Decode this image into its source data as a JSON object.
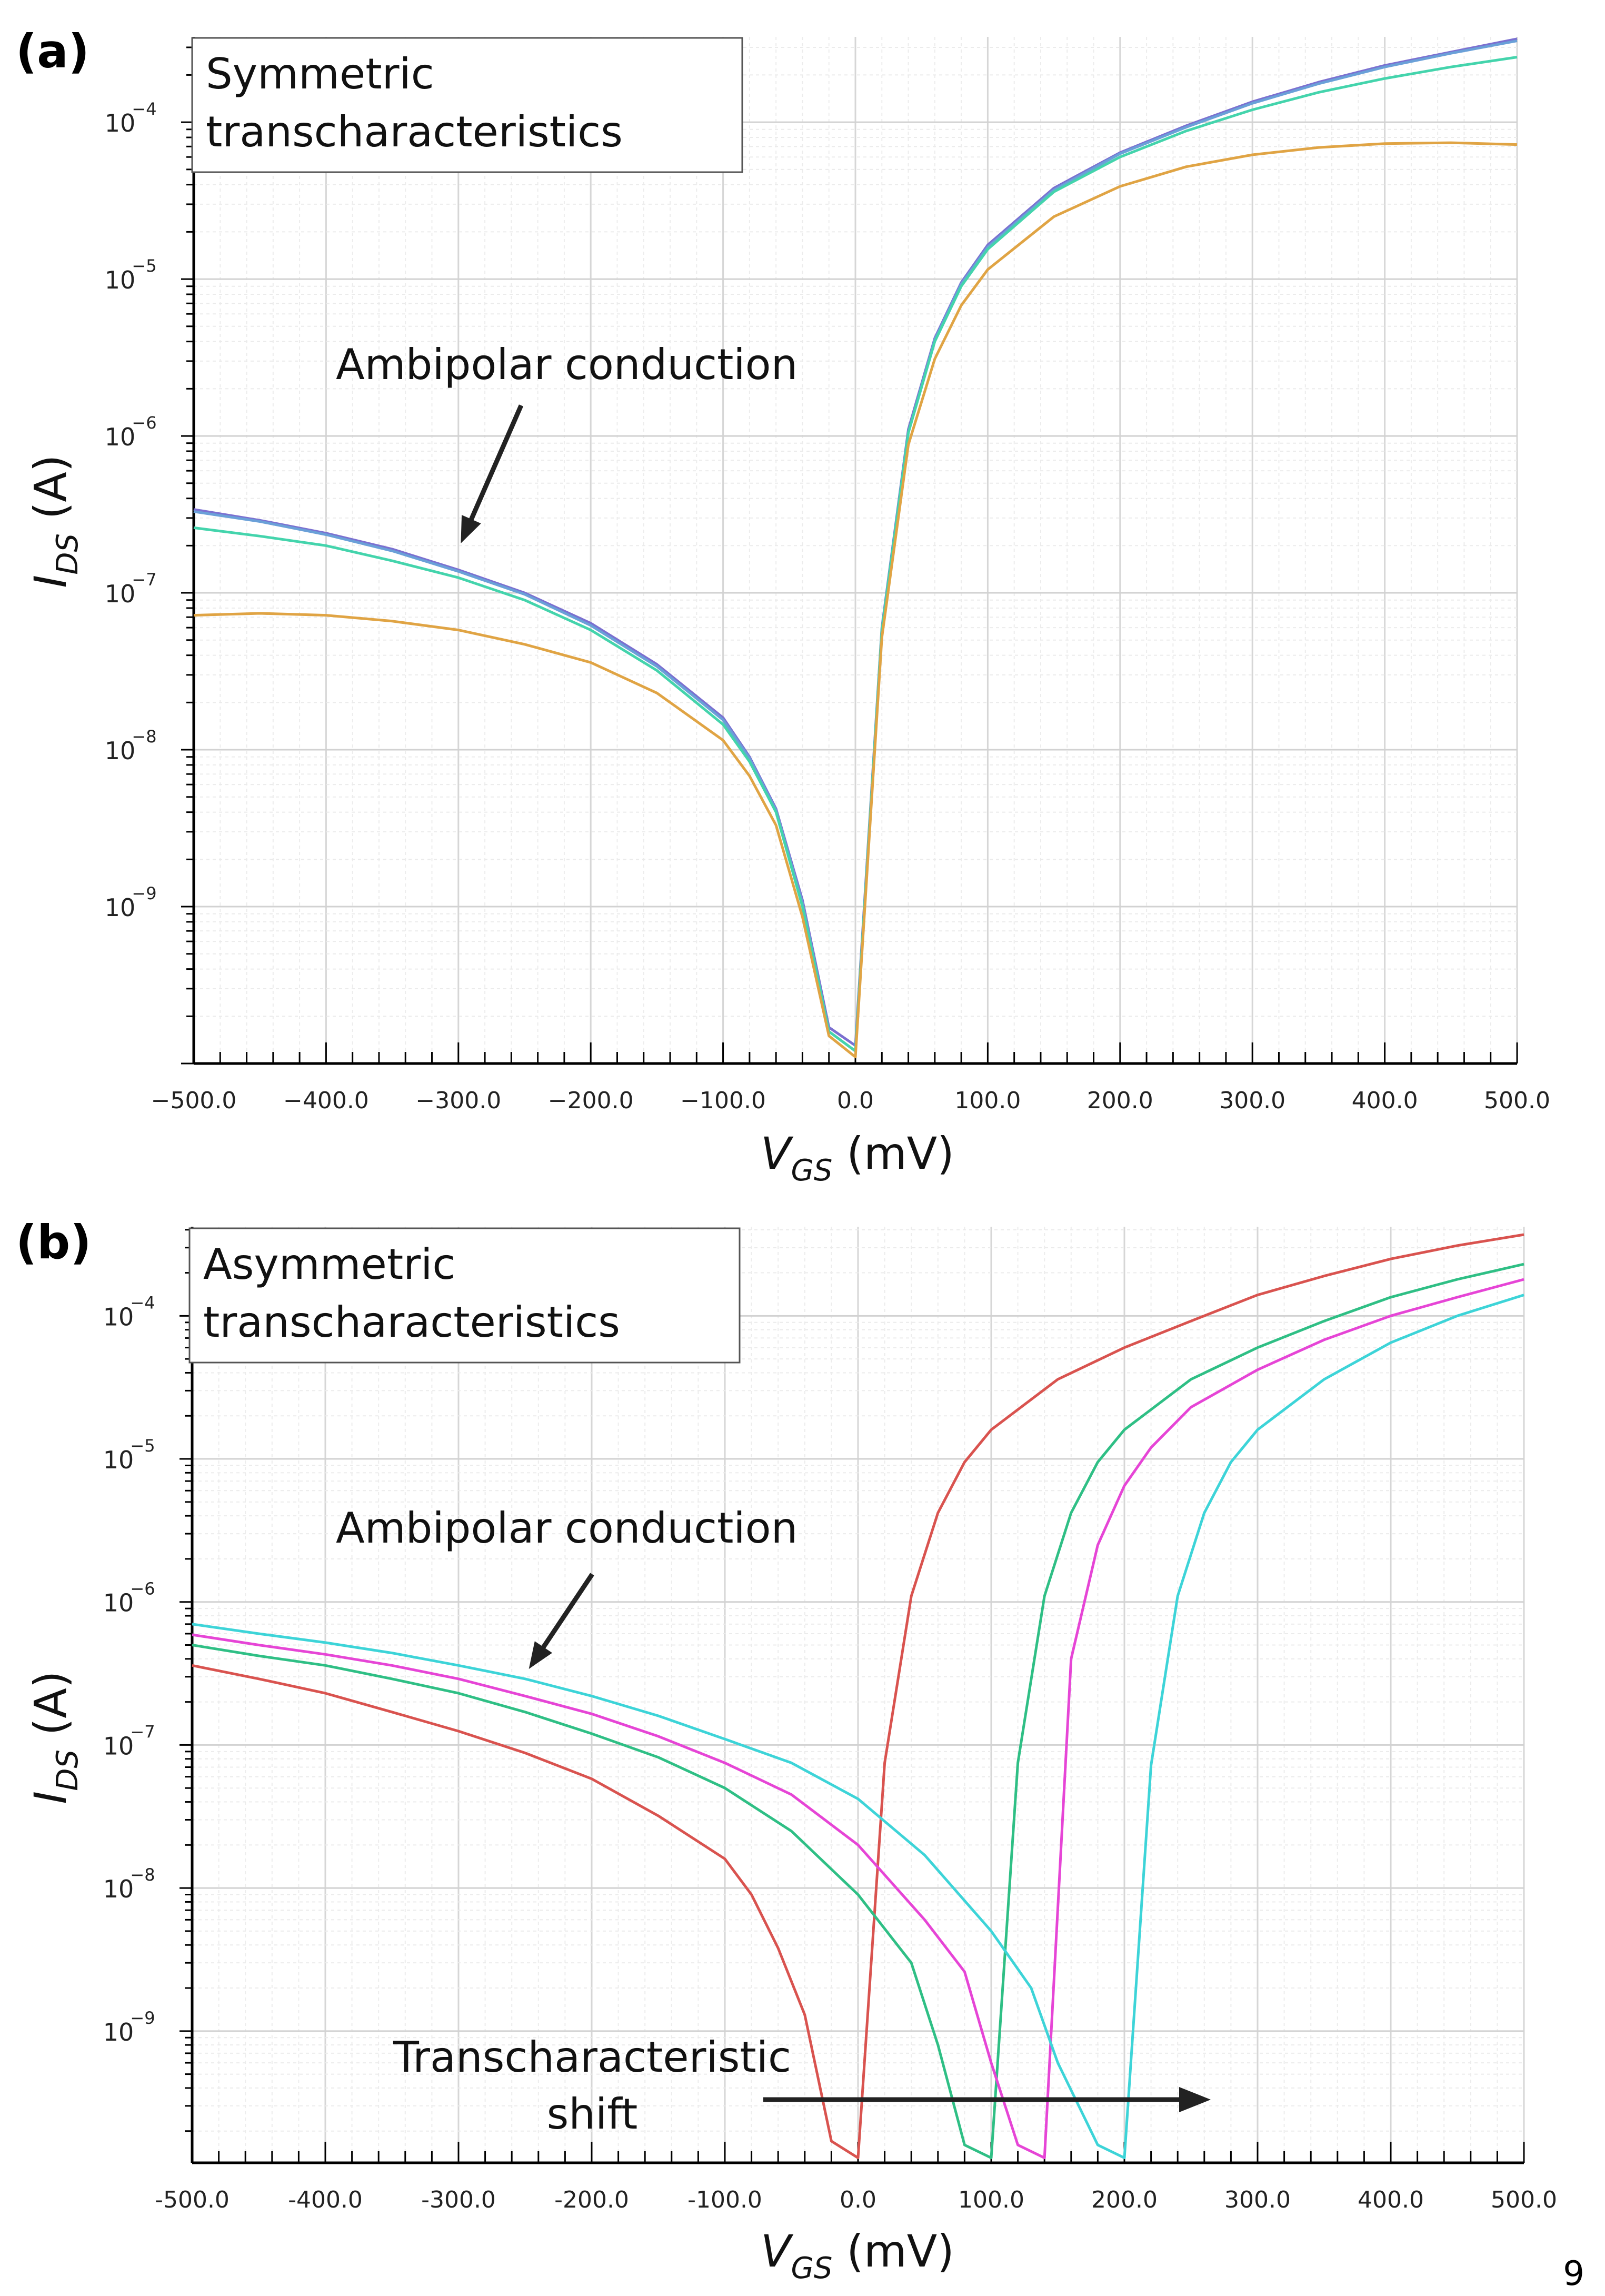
{
  "page_number": "9",
  "chart_data": [
    {
      "type": "line",
      "panel_label": "(a)",
      "title": "Symmetric transcharacteristics",
      "title_lines": [
        "Symmetric",
        "transcharacteristics"
      ],
      "annotation": "Ambipolar conduction",
      "xlabel_main": "V",
      "xlabel_sub": "GS",
      "xlabel_unit": "(mV)",
      "ylabel_main": "I",
      "ylabel_sub": "DS",
      "ylabel_unit": "(A)",
      "x_ticks": [
        "−500.0",
        "−400.0",
        "−300.0",
        "−200.0",
        "−100.0",
        "0.0",
        "100.0",
        "200.0",
        "300.0",
        "400.0",
        "500.0"
      ],
      "y_ticks": [
        "10",
        "10",
        "10",
        "10",
        "10",
        "10"
      ],
      "y_tick_exponents": [
        "−4",
        "−5",
        "−6",
        "−7",
        "−8",
        "−9"
      ],
      "xlim": [
        -500,
        500
      ],
      "ylim": [
        1e-10,
        0.00035
      ],
      "yscale": "log",
      "grid": true,
      "series": [
        {
          "color": "#7b6fd0",
          "x": [
            -500,
            -450,
            -400,
            -350,
            -300,
            -250,
            -200,
            -150,
            -100,
            -80,
            -60,
            -40,
            -20,
            0,
            20,
            40,
            60,
            80,
            100,
            150,
            200,
            250,
            300,
            350,
            400,
            450,
            500
          ],
          "y": [
            3.4e-07,
            2.9e-07,
            2.4e-07,
            1.9e-07,
            1.4e-07,
            1e-07,
            6.4e-08,
            3.5e-08,
            1.6e-08,
            9e-09,
            4.2e-09,
            1.1e-09,
            1.7e-10,
            1.3e-10,
            6e-08,
            1.1e-06,
            4.2e-06,
            9.5e-06,
            1.65e-05,
            3.8e-05,
            6.4e-05,
            9.5e-05,
            0.000135,
            0.00018,
            0.00023,
            0.00028,
            0.00034
          ]
        },
        {
          "color": "#6aa0d8",
          "x": [
            -500,
            -450,
            -400,
            -350,
            -300,
            -250,
            -200,
            -150,
            -100,
            -80,
            -60,
            -40,
            -20,
            0,
            20,
            40,
            60,
            80,
            100,
            150,
            200,
            250,
            300,
            350,
            400,
            450,
            500
          ],
          "y": [
            3.3e-07,
            2.85e-07,
            2.35e-07,
            1.85e-07,
            1.37e-07,
            9.8e-08,
            6.2e-08,
            3.4e-08,
            1.55e-08,
            8.8e-09,
            4.1e-09,
            1.05e-09,
            1.6e-10,
            1.2e-10,
            5.8e-08,
            1.05e-06,
            4.1e-06,
            9.3e-06,
            1.6e-05,
            3.7e-05,
            6.3e-05,
            9.3e-05,
            0.000132,
            0.000176,
            0.000225,
            0.000275,
            0.00033
          ]
        },
        {
          "color": "#44d4ac",
          "x": [
            -500,
            -450,
            -400,
            -350,
            -300,
            -250,
            -200,
            -150,
            -100,
            -80,
            -60,
            -40,
            -20,
            0,
            20,
            40,
            60,
            80,
            100,
            150,
            200,
            250,
            300,
            350,
            400,
            450,
            500
          ],
          "y": [
            2.6e-07,
            2.3e-07,
            2e-07,
            1.6e-07,
            1.25e-07,
            9e-08,
            5.8e-08,
            3.2e-08,
            1.45e-08,
            8.4e-09,
            4e-09,
            1e-09,
            1.6e-10,
            1.2e-10,
            5.8e-08,
            1.05e-06,
            4e-06,
            9e-06,
            1.55e-05,
            3.6e-05,
            6e-05,
            8.8e-05,
            0.00012,
            0.000155,
            0.00019,
            0.000225,
            0.00026
          ]
        },
        {
          "color": "#e0a444",
          "x": [
            -500,
            -450,
            -400,
            -350,
            -300,
            -250,
            -200,
            -150,
            -100,
            -80,
            -60,
            -40,
            -20,
            0,
            20,
            40,
            60,
            80,
            100,
            150,
            200,
            250,
            300,
            350,
            400,
            450,
            500
          ],
          "y": [
            7.2e-08,
            7.4e-08,
            7.2e-08,
            6.6e-08,
            5.8e-08,
            4.7e-08,
            3.6e-08,
            2.3e-08,
            1.15e-08,
            6.8e-09,
            3.3e-09,
            8.6e-10,
            1.5e-10,
            1.1e-10,
            5.2e-08,
            8.8e-07,
            3.1e-06,
            6.8e-06,
            1.15e-05,
            2.5e-05,
            3.9e-05,
            5.2e-05,
            6.2e-05,
            6.9e-05,
            7.3e-05,
            7.4e-05,
            7.2e-05
          ]
        }
      ]
    },
    {
      "type": "line",
      "panel_label": "(b)",
      "title": "Asymmetric transcharacteristics",
      "title_lines": [
        "Asymmetric",
        "transcharacteristics"
      ],
      "annotation": "Ambipolar conduction",
      "annotation2_lines": [
        "Transcharacteristic",
        "shift"
      ],
      "xlabel_main": "V",
      "xlabel_sub": "GS",
      "xlabel_unit": "(mV)",
      "ylabel_main": "I",
      "ylabel_sub": "DS",
      "ylabel_unit": "(A)",
      "x_ticks": [
        "-500.0",
        "-400.0",
        "-300.0",
        "-200.0",
        "-100.0",
        "0.0",
        "100.0",
        "200.0",
        "300.0",
        "400.0",
        "500.0"
      ],
      "y_ticks": [
        "10",
        "10",
        "10",
        "10",
        "10",
        "10"
      ],
      "y_tick_exponents": [
        "−4",
        "−5",
        "−6",
        "−7",
        "−8",
        "−9"
      ],
      "xlim": [
        -500,
        500
      ],
      "ylim": [
        1.2e-10,
        0.00042
      ],
      "yscale": "log",
      "grid": true,
      "series": [
        {
          "color": "#d9534f",
          "x": [
            -500,
            -450,
            -400,
            -350,
            -300,
            -250,
            -200,
            -150,
            -100,
            -80,
            -60,
            -40,
            -20,
            0,
            20,
            40,
            60,
            80,
            100,
            150,
            200,
            250,
            300,
            350,
            400,
            450,
            500
          ],
          "y": [
            3.6e-07,
            2.9e-07,
            2.3e-07,
            1.7e-07,
            1.25e-07,
            8.8e-08,
            5.8e-08,
            3.2e-08,
            1.6e-08,
            9e-09,
            3.8e-09,
            1.3e-09,
            1.7e-10,
            1.3e-10,
            7.5e-08,
            1.1e-06,
            4.2e-06,
            9.5e-06,
            1.6e-05,
            3.6e-05,
            6e-05,
            9.2e-05,
            0.00014,
            0.00019,
            0.00025,
            0.00031,
            0.00037
          ]
        },
        {
          "color": "#2fbf85",
          "x": [
            -500,
            -450,
            -400,
            -350,
            -300,
            -250,
            -200,
            -150,
            -100,
            -50,
            0,
            40,
            60,
            80,
            100,
            120,
            140,
            160,
            180,
            200,
            250,
            300,
            350,
            400,
            450,
            500
          ],
          "y": [
            5e-07,
            4.2e-07,
            3.6e-07,
            2.9e-07,
            2.3e-07,
            1.7e-07,
            1.2e-07,
            8.2e-08,
            5e-08,
            2.5e-08,
            9e-09,
            3e-09,
            8e-10,
            1.6e-10,
            1.3e-10,
            7.5e-08,
            1.1e-06,
            4.2e-06,
            9.5e-06,
            1.6e-05,
            3.6e-05,
            6e-05,
            9.2e-05,
            0.000135,
            0.00018,
            0.00023
          ]
        },
        {
          "color": "#e645d6",
          "x": [
            -500,
            -450,
            -400,
            -350,
            -300,
            -250,
            -200,
            -150,
            -100,
            -50,
            0,
            50,
            80,
            100,
            120,
            140,
            160,
            180,
            200,
            220,
            250,
            300,
            350,
            400,
            450,
            500
          ],
          "y": [
            5.9e-07,
            5e-07,
            4.3e-07,
            3.6e-07,
            2.9e-07,
            2.2e-07,
            1.65e-07,
            1.15e-07,
            7.5e-08,
            4.5e-08,
            2e-08,
            6e-09,
            2.6e-09,
            6e-10,
            1.6e-10,
            1.3e-10,
            4e-07,
            2.5e-06,
            6.5e-06,
            1.2e-05,
            2.3e-05,
            4.2e-05,
            6.8e-05,
            0.0001,
            0.000135,
            0.00018
          ]
        },
        {
          "color": "#3dd4d8",
          "x": [
            -500,
            -450,
            -400,
            -350,
            -300,
            -250,
            -200,
            -150,
            -100,
            -50,
            0,
            50,
            100,
            130,
            150,
            180,
            200,
            220,
            240,
            260,
            280,
            300,
            350,
            400,
            450,
            500
          ],
          "y": [
            7e-07,
            6e-07,
            5.2e-07,
            4.4e-07,
            3.6e-07,
            2.9e-07,
            2.2e-07,
            1.6e-07,
            1.1e-07,
            7.5e-08,
            4.2e-08,
            1.7e-08,
            5e-09,
            2e-09,
            6e-10,
            1.6e-10,
            1.3e-10,
            7.2e-08,
            1.1e-06,
            4.2e-06,
            9.5e-06,
            1.6e-05,
            3.6e-05,
            6.5e-05,
            0.0001,
            0.00014
          ]
        }
      ]
    }
  ]
}
